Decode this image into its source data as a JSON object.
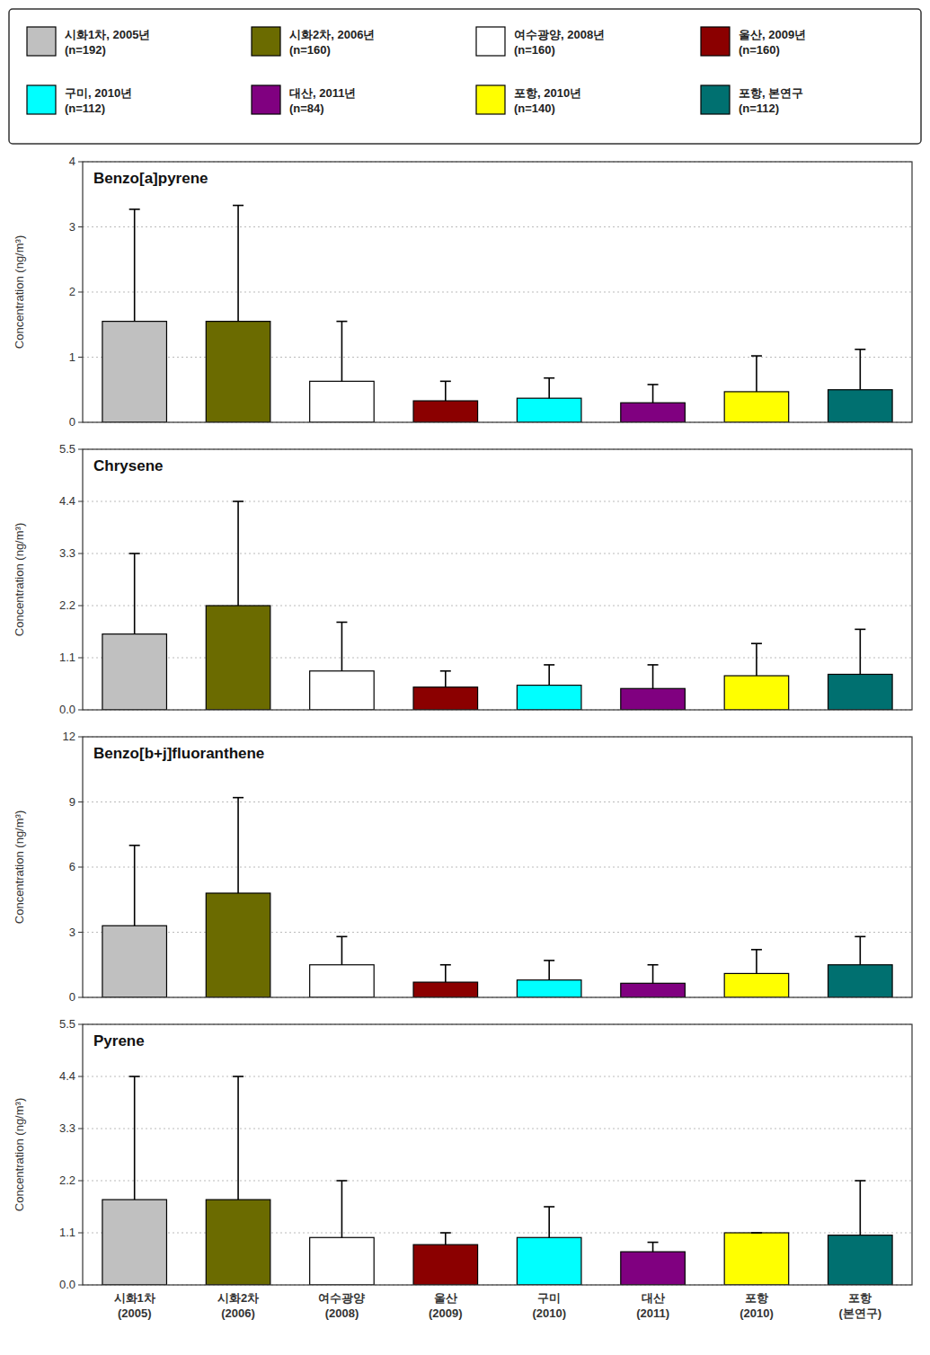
{
  "legend_entries": [
    {
      "label": "시화1차, 2005년\n(n=192)",
      "color": "#C0C0C0"
    },
    {
      "label": "시화2차, 2006년\n(n=160)",
      "color": "#6B6B00"
    },
    {
      "label": "여수광양, 2008년\n(n=160)",
      "color": "#FFFFFF"
    },
    {
      "label": "울산, 2009년\n(n=160)",
      "color": "#8B0000"
    },
    {
      "label": "구미, 2010년\n(n=112)",
      "color": "#00FFFF"
    },
    {
      "label": "대산, 2011년\n(n=84)",
      "color": "#800080"
    },
    {
      "label": "포항, 2010년\n(n=140)",
      "color": "#FFFF00"
    },
    {
      "label": "포항, 본연구\n(n=112)",
      "color": "#007070"
    }
  ],
  "chart_data": [
    {
      "type": "bar",
      "title": "Benzo[a]pyrene",
      "ylabel": "Concentration (ng/m³)",
      "categories": [
        "시화1차\n(2005)",
        "시화2차\n(2006)",
        "여수광양\n(2008)",
        "울산\n(2009)",
        "구미\n(2010)",
        "대산\n(2011)",
        "포항\n(2010)",
        "포항\n(본연구)"
      ],
      "values": [
        1.55,
        1.55,
        0.63,
        0.33,
        0.37,
        0.3,
        0.47,
        0.5
      ],
      "error_upper": [
        1.72,
        1.78,
        0.92,
        0.3,
        0.31,
        0.28,
        0.55,
        0.62
      ],
      "colors": [
        "#C0C0C0",
        "#6B6B00",
        "#FFFFFF",
        "#8B0000",
        "#00FFFF",
        "#800080",
        "#FFFF00",
        "#007070"
      ],
      "ylim": [
        0,
        4
      ],
      "yticks": [
        0,
        1,
        2,
        3,
        4
      ],
      "grid": true,
      "tick_labels": "y"
    },
    {
      "type": "bar",
      "title": "Chrysene",
      "ylabel": "Concentration (ng/m³)",
      "categories": [
        "시화1차\n(2005)",
        "시화2차\n(2006)",
        "여수광양\n(2008)",
        "울산\n(2009)",
        "구미\n(2010)",
        "대산\n(2011)",
        "포항\n(2010)",
        "포항\n(본연구)"
      ],
      "values": [
        1.6,
        2.2,
        0.82,
        0.48,
        0.52,
        0.45,
        0.72,
        0.75
      ],
      "error_upper": [
        1.7,
        2.2,
        1.03,
        0.34,
        0.43,
        0.5,
        0.68,
        0.95
      ],
      "colors": [
        "#C0C0C0",
        "#6B6B00",
        "#FFFFFF",
        "#8B0000",
        "#00FFFF",
        "#800080",
        "#FFFF00",
        "#007070"
      ],
      "ylim": [
        0,
        5.5
      ],
      "yticks": [
        {
          "value": 0,
          "label": "0.0"
        },
        1.1,
        2.2,
        3.3,
        4.4,
        5.5
      ],
      "grid": true,
      "tick_labels": "y"
    },
    {
      "type": "bar",
      "title": "Benzo[b+j]fluoranthene",
      "ylabel": "Concentration (ng/m³)",
      "categories": [
        "시화1차\n(2005)",
        "시화2차\n(2006)",
        "여수광양\n(2008)",
        "울산\n(2009)",
        "구미\n(2010)",
        "대산\n(2011)",
        "포항\n(2010)",
        "포항\n(본연구)"
      ],
      "values": [
        3.3,
        4.8,
        1.5,
        0.7,
        0.8,
        0.65,
        1.1,
        1.5
      ],
      "error_upper": [
        3.7,
        4.4,
        1.3,
        0.8,
        0.9,
        0.85,
        1.1,
        1.3
      ],
      "colors": [
        "#C0C0C0",
        "#6B6B00",
        "#FFFFFF",
        "#8B0000",
        "#00FFFF",
        "#800080",
        "#FFFF00",
        "#007070"
      ],
      "ylim": [
        0,
        12
      ],
      "yticks": [
        0,
        3,
        6,
        9,
        12
      ],
      "grid": true,
      "tick_labels": "y"
    },
    {
      "type": "bar",
      "title": "Pyrene",
      "ylabel": "Concentration (ng/m³)",
      "categories": [
        "시화1차\n(2005)",
        "시화2차\n(2006)",
        "여수광양\n(2008)",
        "울산\n(2009)",
        "구미\n(2010)",
        "대산\n(2011)",
        "포항\n(2010)",
        "포항\n(본연구)"
      ],
      "values": [
        1.8,
        1.8,
        1.0,
        0.85,
        1.0,
        0.7,
        1.1,
        1.05
      ],
      "error_upper": [
        2.6,
        2.6,
        1.2,
        0.25,
        0.65,
        0.2,
        0.0,
        1.15
      ],
      "colors": [
        "#C0C0C0",
        "#6B6B00",
        "#FFFFFF",
        "#8B0000",
        "#00FFFF",
        "#800080",
        "#FFFF00",
        "#007070"
      ],
      "ylim": [
        0,
        5.5
      ],
      "yticks": [
        {
          "value": 0,
          "label": "0.0"
        },
        1.1,
        2.2,
        3.3,
        4.4,
        5.5
      ],
      "grid": true
    }
  ]
}
